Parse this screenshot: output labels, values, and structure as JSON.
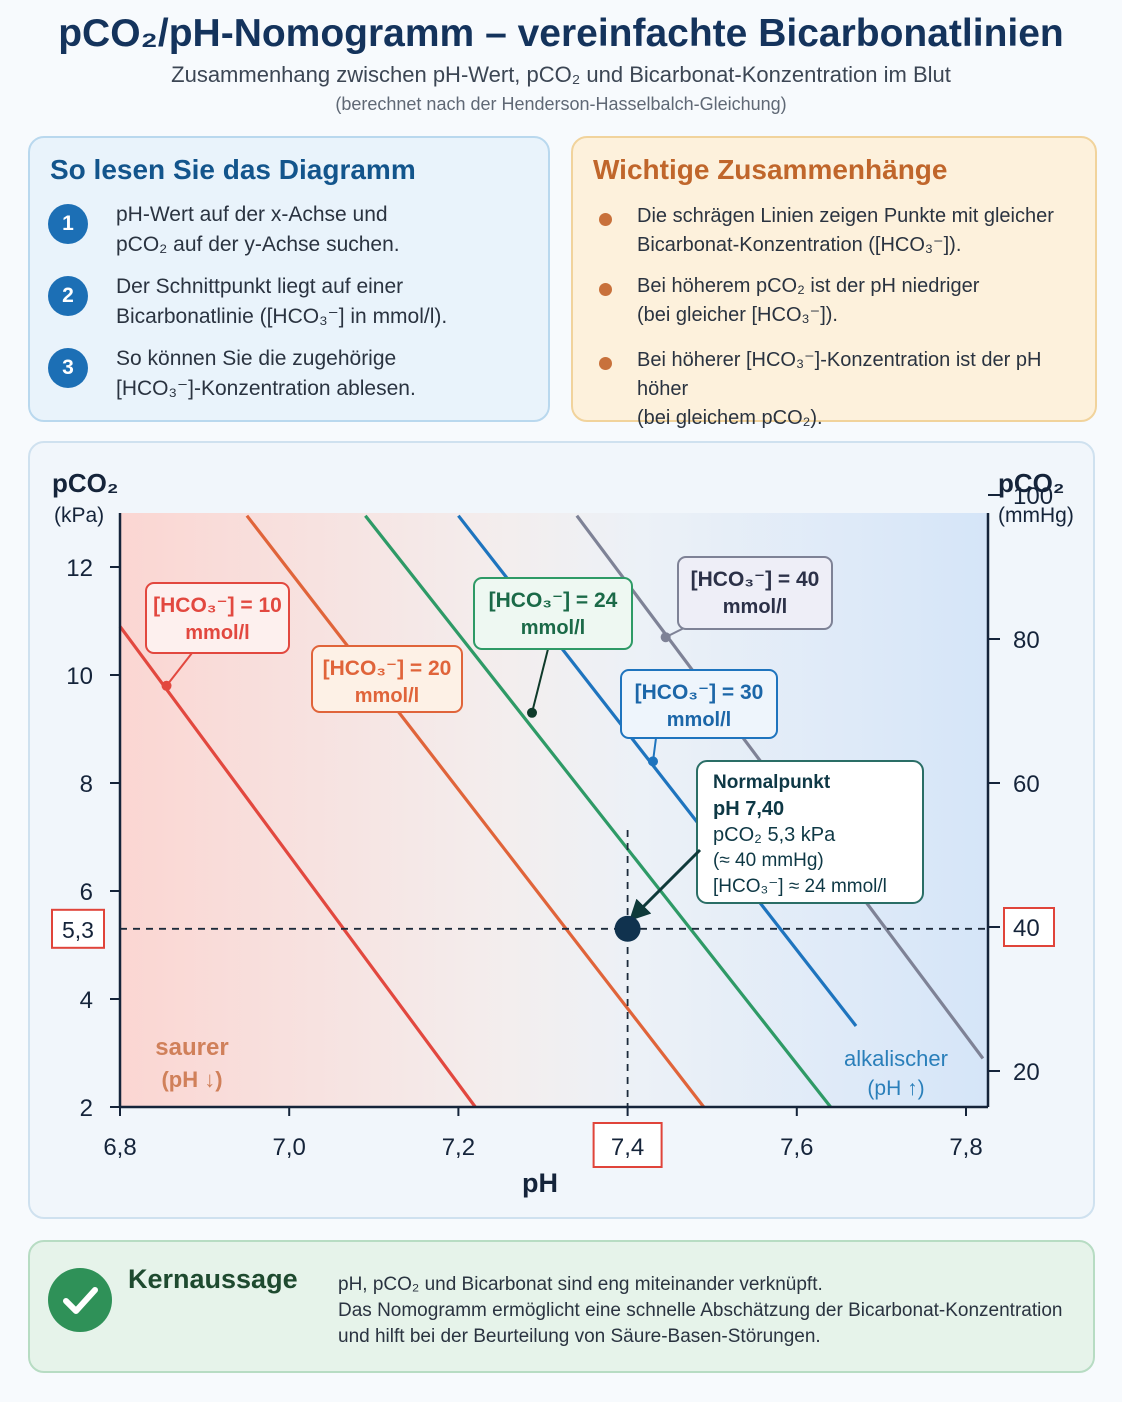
{
  "header": {
    "title": "pCO₂/pH-Nomogramm – vereinfachte Bicarbonatlinien",
    "subtitle": "Zusammenhang zwischen pH-Wert, pCO₂ und Bicarbonat-Konzentration im Blut",
    "note": "(berechnet nach der Henderson-Hasselbalch-Gleichung)"
  },
  "howto": {
    "title": "So lesen Sie das Diagramm",
    "steps": [
      {
        "num": "1",
        "line1": "pH-Wert auf der x-Achse und",
        "line2": "pCO₂ auf der y-Achse suchen."
      },
      {
        "num": "2",
        "line1": "Der Schnittpunkt liegt auf einer",
        "line2": "Bicarbonatlinie ([HCO₃⁻] in mmol/l)."
      },
      {
        "num": "3",
        "line1": "So können Sie die zugehörige",
        "line2": "[HCO₃⁻]-Konzentration ablesen."
      }
    ]
  },
  "facts": {
    "title": "Wichtige Zusammenhänge",
    "items": [
      {
        "line1": "Die schrägen Linien zeigen Punkte mit gleicher",
        "line2": "Bicarbonat-Konzentration ([HCO₃⁻])."
      },
      {
        "line1": "Bei höherem pCO₂ ist der pH niedriger",
        "line2": "(bei gleicher [HCO₃⁻])."
      },
      {
        "line1": "Bei höherer [HCO₃⁻]-Konzentration ist der pH höher",
        "line2": "(bei gleichem pCO₂)."
      }
    ]
  },
  "colors": {
    "hco3_10": "#e2483f",
    "hco3_20": "#e0643a",
    "hco3_24": "#2e9a66",
    "hco3_30": "#1e74be",
    "hco3_40": "#7e8296",
    "normal_point": "#10324e",
    "highlight": "#e0443a"
  },
  "chart_data": {
    "type": "line",
    "xlabel": "pH",
    "ylabel_left": "pCO₂",
    "ylabel_left_unit": "(kPa)",
    "ylabel_right": "pCO₂",
    "ylabel_right_unit": "(mmHg)",
    "xlim": [
      6.8,
      7.8
    ],
    "ylim": [
      2,
      13
    ],
    "x_ticks": [
      "6,8",
      "7,0",
      "7,2",
      "7,4",
      "7,6",
      "7,8"
    ],
    "y_ticks_left": [
      "2",
      "4",
      "6",
      "8",
      "10",
      "12"
    ],
    "y_ticks_right": [
      "20",
      "40",
      "60",
      "80",
      "100"
    ],
    "highlight_x": "7,4",
    "highlight_y_left": "5,3",
    "highlight_y_right": "40",
    "series": [
      {
        "name": "[HCO₃⁻] = 10",
        "unit": "mmol/l",
        "color": "#e2483f",
        "points": [
          [
            6.8,
            10.9
          ],
          [
            7.22,
            2.0
          ]
        ]
      },
      {
        "name": "[HCO₃⁻] = 20",
        "unit": "mmol/l",
        "color": "#e0643a",
        "points": [
          [
            6.95,
            12.95
          ],
          [
            7.49,
            2.0
          ]
        ]
      },
      {
        "name": "[HCO₃⁻] = 24",
        "unit": "mmol/l",
        "color": "#2e9a66",
        "points": [
          [
            7.09,
            12.95
          ],
          [
            7.64,
            2.0
          ]
        ]
      },
      {
        "name": "[HCO₃⁻] = 30",
        "unit": "mmol/l",
        "color": "#1e74be",
        "points": [
          [
            7.2,
            12.95
          ],
          [
            7.67,
            3.5
          ]
        ]
      },
      {
        "name": "[HCO₃⁻] = 40",
        "unit": "mmol/l",
        "color": "#7e8296",
        "points": [
          [
            7.34,
            12.95
          ],
          [
            7.82,
            2.9
          ]
        ]
      }
    ],
    "normal_point": {
      "x": 7.4,
      "y": 5.3,
      "label_title": "Normalpunkt",
      "label_lines": [
        "pH 7,40",
        "pCO₂ 5,3 kPa",
        "(≈ 40 mmHg)",
        "[HCO₃⁻] ≈ 24 mmol/l"
      ]
    },
    "annotations": {
      "acid": [
        "saurer",
        "(pH ↓)"
      ],
      "alkaline": [
        "alkalischer",
        "(pH ↑)"
      ]
    }
  },
  "key": {
    "title": "Kernaussage",
    "lines": [
      "pH, pCO₂ und Bicarbonat sind eng miteinander verknüpft.",
      "Das Nomogramm ermöglicht eine schnelle Abschätzung der Bicarbonat-Konzentration",
      "und hilft bei der Beurteilung von Säure-Basen-Störungen."
    ]
  }
}
